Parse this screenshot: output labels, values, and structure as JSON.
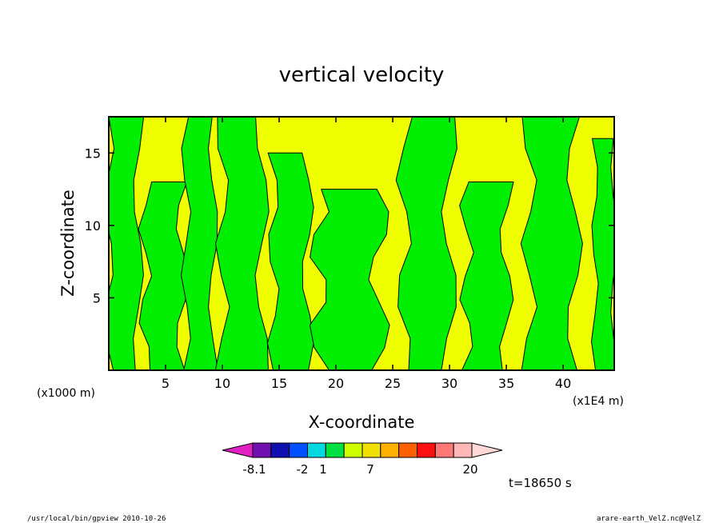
{
  "chart_data": {
    "type": "heatmap",
    "title": "vertical velocity",
    "xlabel": "X-coordinate",
    "ylabel": "Z-coordinate",
    "x_unit_label": "(x1E4 m)",
    "y_unit_label": "(x1000 m)",
    "xlim": [
      0,
      44.5
    ],
    "ylim": [
      0,
      17.5
    ],
    "x_ticks": [
      5,
      10,
      15,
      20,
      25,
      30,
      35,
      40
    ],
    "y_ticks": [
      5,
      10,
      15
    ],
    "x_tick_labels": [
      "5",
      "10",
      "15",
      "20",
      "25",
      "30",
      "35",
      "40"
    ],
    "y_tick_labels": [
      "5",
      "10",
      "15"
    ],
    "fill_colors": {
      "positive": "#f0ff00",
      "negative": "#00ee00",
      "line": "#000000"
    },
    "regions_negative": [
      {
        "name": "green-band-x0-2",
        "x": [
          0.0,
          2.6
        ],
        "z": [
          0.0,
          17.5
        ]
      },
      {
        "name": "green-band-x3-6",
        "x": [
          3.2,
          6.5
        ],
        "z": [
          0.0,
          13.0
        ]
      },
      {
        "name": "green-band-x7-9",
        "x": [
          6.8,
          9.2
        ],
        "z": [
          0.0,
          17.5
        ]
      },
      {
        "name": "green-band-x10-13",
        "x": [
          10.0,
          13.5
        ],
        "z": [
          0.0,
          17.5
        ]
      },
      {
        "name": "green-band-x15-17",
        "x": [
          14.5,
          17.5
        ],
        "z": [
          0.0,
          15.0
        ]
      },
      {
        "name": "green-band-x19-24",
        "x": [
          18.5,
          23.8
        ],
        "z": [
          0.0,
          12.5
        ]
      },
      {
        "name": "green-band-x26-30",
        "x": [
          26.0,
          30.0
        ],
        "z": [
          0.0,
          17.5
        ]
      },
      {
        "name": "green-band-x32-35",
        "x": [
          31.5,
          35.0
        ],
        "z": [
          0.0,
          13.0
        ]
      },
      {
        "name": "green-band-x37-41",
        "x": [
          37.0,
          41.0
        ],
        "z": [
          0.0,
          17.5
        ]
      },
      {
        "name": "green-band-x43-44",
        "x": [
          42.8,
          44.5
        ],
        "z": [
          0.0,
          16.0
        ]
      }
    ],
    "colorbar": {
      "colors": [
        "#e020c0",
        "#7010b0",
        "#1010b0",
        "#0050ff",
        "#00d8e0",
        "#00e040",
        "#d0ff00",
        "#f0e000",
        "#ffb000",
        "#ff6000",
        "#ff1010",
        "#ff7878",
        "#ffb8b8",
        "#ffd8d8"
      ],
      "tick_labels": [
        "-8.1",
        "-2",
        "1",
        "7",
        "20"
      ]
    },
    "time_label": "t=18650 s",
    "footer_left": "/usr/local/bin/gpview   2010-10-26",
    "footer_right": "arare-earth_VelZ.nc@VelZ"
  }
}
